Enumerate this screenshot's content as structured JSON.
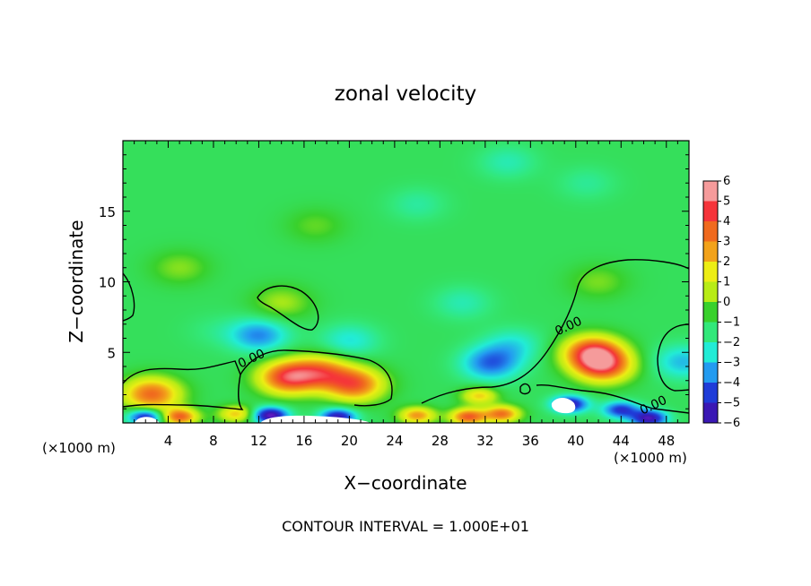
{
  "chart_data": {
    "type": "heatmap",
    "title": "zonal velocity",
    "xlabel": "X−coordinate",
    "ylabel": "Z−coordinate",
    "x_unit_left": "(×1000 m)",
    "x_unit_right": "(×1000 m)",
    "footer": "CONTOUR INTERVAL = 1.000E+01",
    "xlim": [
      0,
      50
    ],
    "ylim": [
      0,
      20
    ],
    "x_ticks": [
      4,
      8,
      12,
      16,
      20,
      24,
      28,
      32,
      36,
      40,
      44,
      48
    ],
    "x_tick_labels": [
      "4",
      "8",
      "12",
      "16",
      "20",
      "24",
      "28",
      "32",
      "36",
      "40",
      "44",
      "48"
    ],
    "y_ticks": [
      5,
      10,
      15
    ],
    "y_tick_labels": [
      "5",
      "10",
      "15"
    ],
    "colorbar": {
      "levels": [
        6,
        5,
        4,
        3,
        2,
        1,
        0,
        -1,
        -2,
        -3,
        -4,
        -5,
        -6
      ],
      "labels": [
        "6",
        "5",
        "4",
        "3",
        "2",
        "1",
        "0",
        "−1",
        "−2",
        "−3",
        "−4",
        "−5",
        "−6"
      ],
      "colors": [
        "#f59b9b",
        "#f5343a",
        "#f06a1e",
        "#f2a21a",
        "#eded14",
        "#b8ec16",
        "#39d12c",
        "#32e87a",
        "#22ecd6",
        "#239bf0",
        "#1f3cd8",
        "#3a18b4",
        "#8a1ccf"
      ]
    },
    "contour_labels": [
      {
        "text": "0.00",
        "x": 11.5,
        "y": 4.3
      },
      {
        "text": "0.00",
        "x": 39.5,
        "y": 6.6
      },
      {
        "text": "0.00",
        "x": 47.0,
        "y": 1.0
      }
    ],
    "background_value": -0.6,
    "features": [
      {
        "x": 34,
        "z": 18.5,
        "value": -1.6
      },
      {
        "x": 26,
        "z": 15.5,
        "value": -1.4
      },
      {
        "x": 41,
        "z": 17.0,
        "value": -1.3
      },
      {
        "x": 30,
        "z": 8.5,
        "value": -1.6
      },
      {
        "x": 5,
        "z": 11.0,
        "value": 0.6
      },
      {
        "x": 17,
        "z": 14.0,
        "value": 0.3
      },
      {
        "x": 14,
        "z": 8.5,
        "value": 0.9
      },
      {
        "x": 42,
        "z": 10.0,
        "value": 0.5
      },
      {
        "x": 8,
        "z": 6.5,
        "value": -1.0
      },
      {
        "x": 12.0,
        "z": 6.2,
        "value": -3.2
      },
      {
        "x": 20.0,
        "z": 5.8,
        "value": -2.1
      },
      {
        "x": 32.5,
        "z": 4.2,
        "value": -3.5
      },
      {
        "x": 34.5,
        "z": 5.5,
        "value": -2.0
      },
      {
        "x": 49.5,
        "z": 4.3,
        "value": -2.6
      },
      {
        "x": 2.5,
        "z": 2.0,
        "value": 4.0
      },
      {
        "x": 14.5,
        "z": 3.2,
        "value": 4.6
      },
      {
        "x": 17.5,
        "z": 3.6,
        "value": 3.2
      },
      {
        "x": 20.5,
        "z": 2.7,
        "value": 4.1
      },
      {
        "x": 41.5,
        "z": 5.0,
        "value": 4.6
      },
      {
        "x": 42.5,
        "z": 4.0,
        "value": 4.2
      },
      {
        "x": 5.0,
        "z": 0.4,
        "value": 4.0
      },
      {
        "x": 10.0,
        "z": 0.6,
        "value": 2.5
      },
      {
        "x": 26.0,
        "z": 0.5,
        "value": 3.2
      },
      {
        "x": 30.5,
        "z": 0.4,
        "value": 4.2
      },
      {
        "x": 33.5,
        "z": 0.6,
        "value": 3.8
      },
      {
        "x": 31.5,
        "z": 1.9,
        "value": 2.4
      },
      {
        "x": 2.0,
        "z": 0.4,
        "value": -5.0
      },
      {
        "x": 13.0,
        "z": 0.5,
        "value": -5.6
      },
      {
        "x": 19.0,
        "z": 0.4,
        "value": -5.0
      },
      {
        "x": 39.5,
        "z": 1.3,
        "value": -5.0
      },
      {
        "x": 44.0,
        "z": 0.9,
        "value": -4.2
      },
      {
        "x": 46.5,
        "z": 0.3,
        "value": -5.2
      }
    ]
  }
}
